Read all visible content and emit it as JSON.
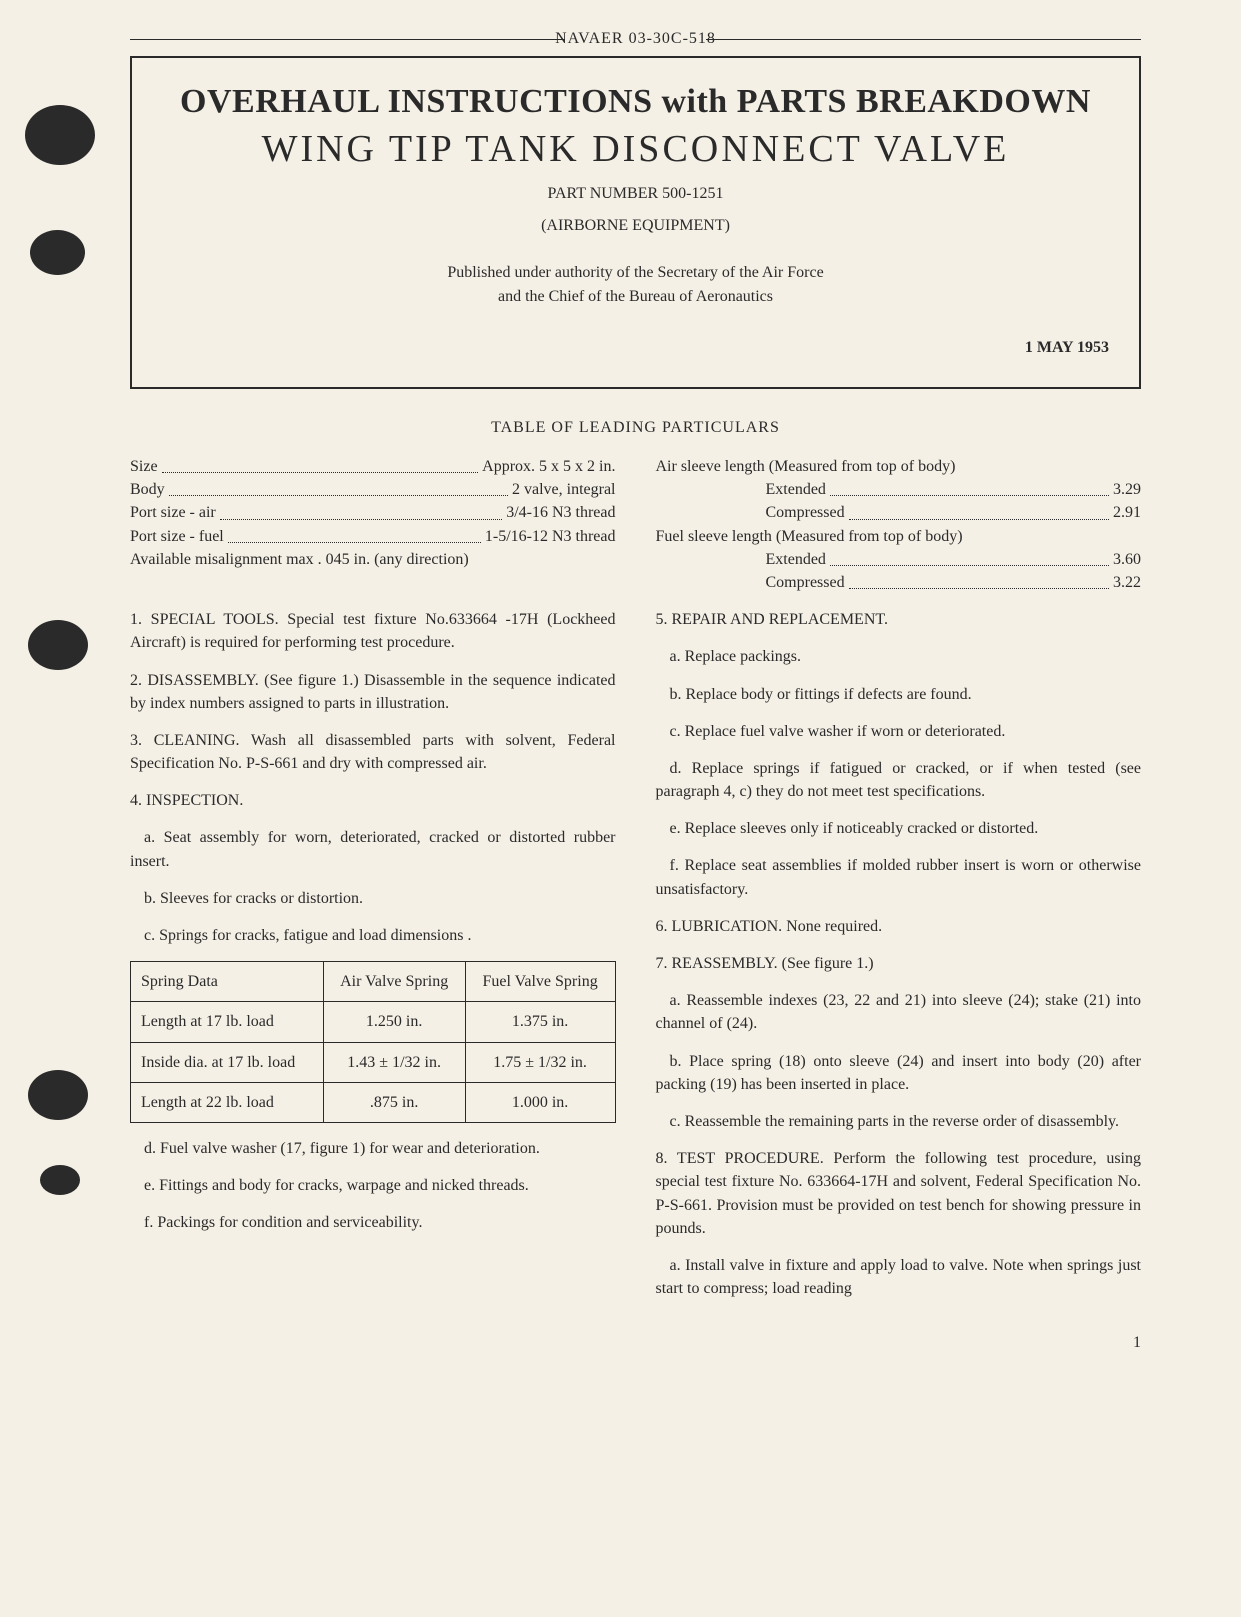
{
  "header": {
    "docnum": "NAVAER 03-30C-518"
  },
  "titlebox": {
    "line1": "OVERHAUL INSTRUCTIONS with PARTS BREAKDOWN",
    "line2": "WING TIP TANK DISCONNECT VALVE",
    "partnum": "PART NUMBER 500-1251",
    "equip": "(AIRBORNE EQUIPMENT)",
    "auth1": "Published under authority of the Secretary of the Air Force",
    "auth2": "and the Chief of the Bureau of Aeronautics",
    "date": "1 MAY 1953"
  },
  "toc": {
    "title": "TABLE OF LEADING PARTICULARS"
  },
  "specs_left": {
    "r1l": "Size",
    "r1v": "Approx.  5 x 5 x 2 in.",
    "r2l": "Body",
    "r2v": "2 valve, integral",
    "r3l": "Port size - air",
    "r3v": "3/4-16 N3 thread",
    "r4l": "Port size - fuel",
    "r4v": "1-5/16-12 N3 thread",
    "r5": "Available misalignment max . 045 in. (any direction)"
  },
  "specs_right": {
    "h1": "Air sleeve length (Measured from top of body)",
    "r1l": "Extended",
    "r1v": "3.29",
    "r2l": "Compressed",
    "r2v": "2.91",
    "h2": "Fuel sleeve length (Measured from top of body)",
    "r3l": "Extended",
    "r3v": "3.60",
    "r4l": "Compressed",
    "r4v": "3.22"
  },
  "left": {
    "p1": "1.  SPECIAL TOOLS.  Special test fixture No.633664 -17H (Lockheed Aircraft) is required for performing test procedure.",
    "p2": "2.  DISASSEMBLY.  (See figure 1.)  Disassemble in the sequence indicated by index numbers assigned to parts in illustration.",
    "p3": "3. CLEANING.  Wash all disassembled parts with solvent, Federal Specification No. P-S-661 and dry with compressed air.",
    "p4": "4.  INSPECTION.",
    "p4a": "a.  Seat assembly for worn, deteriorated, cracked or distorted rubber insert.",
    "p4b": "b.  Sleeves for cracks or distortion.",
    "p4c": "c.  Springs for cracks, fatigue and load dimensions .",
    "p4d": "d.  Fuel valve washer (17, figure 1) for wear and deterioration.",
    "p4e": "e.  Fittings and body for cracks, warpage and nicked threads.",
    "p4f": "f.  Packings for condition and serviceability."
  },
  "spring": {
    "h1": "Spring Data",
    "h2": "Air Valve Spring",
    "h3": "Fuel Valve Spring",
    "r1c1": "Length at 17 lb. load",
    "r1c2": "1.250 in.",
    "r1c3": "1.375 in.",
    "r2c1": "Inside dia. at 17 lb. load",
    "r2c2": "1.43 ± 1/32 in.",
    "r2c3": "1.75 ± 1/32 in.",
    "r3c1": "Length at 22 lb. load",
    "r3c2": ".875 in.",
    "r3c3": "1.000 in."
  },
  "right": {
    "p5": "5.  REPAIR AND REPLACEMENT.",
    "p5a": "a.  Replace packings.",
    "p5b": "b.  Replace body or fittings if defects are found.",
    "p5c": "c.  Replace fuel valve washer if worn or deteriorated.",
    "p5d": "d.  Replace springs if fatigued or cracked, or if when tested (see paragraph 4, c) they do not meet test specifications.",
    "p5e": "e.  Replace sleeves only if noticeably cracked or distorted.",
    "p5f": "f.  Replace seat assemblies if molded rubber insert is worn or otherwise unsatisfactory.",
    "p6": "6.  LUBRICATION.  None required.",
    "p7": "7.  REASSEMBLY.  (See figure 1.)",
    "p7a": "a.  Reassemble indexes (23, 22 and 21) into sleeve (24); stake (21) into channel of (24).",
    "p7b": "b.  Place spring (18) onto sleeve (24) and insert into body (20) after packing (19) has been inserted in place.",
    "p7c": "c.  Reassemble the remaining parts in the reverse order of disassembly.",
    "p8": "8.  TEST PROCEDURE.  Perform the following test procedure, using special test fixture No. 633664-17H and solvent, Federal Specification No. P-S-661.  Provision must be provided on test bench for showing pressure in pounds.",
    "p8a": "a.  Install valve in fixture and apply load to valve. Note when springs just start to compress; load reading"
  },
  "page": {
    "num": "1"
  }
}
